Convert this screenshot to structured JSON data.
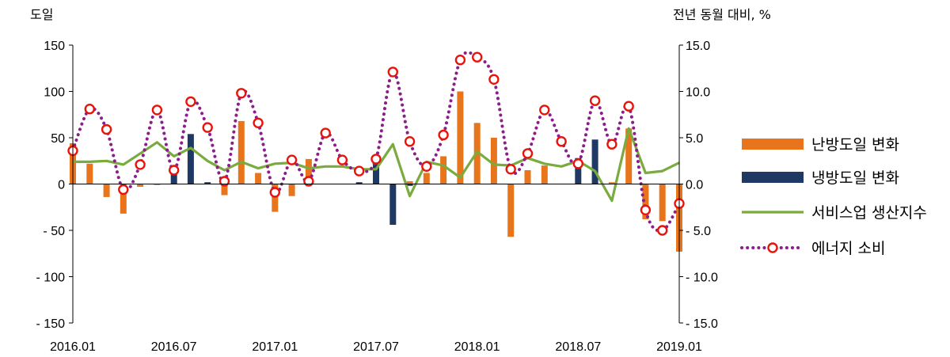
{
  "chart_data": {
    "type": "bar",
    "y_left_label": "도일",
    "y_right_label": "전년 동월 대비, %",
    "y_left_range": [
      -150,
      150
    ],
    "y_left_ticks": [
      "150",
      "100",
      "50",
      "0",
      "- 50",
      "- 100",
      "- 150"
    ],
    "y_right_range": [
      -15,
      15
    ],
    "y_right_ticks": [
      "15.0",
      "10.0",
      "5.0",
      "0.0",
      "- 5.0",
      "- 10.0",
      "- 15.0"
    ],
    "x_tick_labels": [
      "2016.01",
      "2016.07",
      "2017.01",
      "2017.07",
      "2018.01",
      "2018.07",
      "2019.01"
    ],
    "categories": [
      "2016.01",
      "2016.02",
      "2016.03",
      "2016.04",
      "2016.05",
      "2016.06",
      "2016.07",
      "2016.08",
      "2016.09",
      "2016.10",
      "2016.11",
      "2016.12",
      "2017.01",
      "2017.02",
      "2017.03",
      "2017.04",
      "2017.05",
      "2017.06",
      "2017.07",
      "2017.08",
      "2017.09",
      "2017.10",
      "2017.11",
      "2017.12",
      "2018.01",
      "2018.02",
      "2018.03",
      "2018.04",
      "2018.05",
      "2018.06",
      "2018.07",
      "2018.08",
      "2018.09",
      "2018.10",
      "2018.11",
      "2018.12",
      "2019.01"
    ],
    "legend_position": "right",
    "series": [
      {
        "name": "난방도일 변화",
        "kind": "bar",
        "axis": "left",
        "color": "#E8741C",
        "values": [
          44,
          22,
          -14,
          -32,
          -3,
          -1,
          0,
          0,
          0,
          -12,
          68,
          12,
          -30,
          -13,
          27,
          0,
          0,
          0,
          0,
          0,
          3,
          12,
          30,
          100,
          66,
          50,
          -57,
          15,
          20,
          0,
          0,
          0,
          2,
          60,
          -38,
          -40,
          -73
        ]
      },
      {
        "name": "냉방도일 변화",
        "kind": "bar",
        "axis": "left",
        "color": "#1F3864",
        "values": [
          0,
          0,
          0,
          0,
          0,
          0,
          15,
          54,
          2,
          0,
          0,
          0,
          0,
          0,
          0,
          0,
          0,
          2,
          22,
          -44,
          -2,
          0,
          0,
          0,
          0,
          0,
          0,
          0,
          0,
          0,
          28,
          48,
          0,
          0,
          0,
          0,
          0
        ]
      },
      {
        "name": "서비스업 생산지수",
        "kind": "line",
        "axis": "right",
        "color": "#7AAB3E",
        "values": [
          2.4,
          2.4,
          2.5,
          2.1,
          3.3,
          4.5,
          3.0,
          3.9,
          2.5,
          1.5,
          2.4,
          1.7,
          2.2,
          2.3,
          1.7,
          1.9,
          1.9,
          1.6,
          1.6,
          4.3,
          -1.3,
          2.4,
          2.0,
          0.7,
          3.5,
          2.1,
          2.0,
          2.8,
          2.2,
          1.9,
          2.5,
          1.4,
          -1.8,
          6.0,
          1.2,
          1.4,
          2.3
        ]
      },
      {
        "name": "에너지 소비",
        "kind": "dotted-line",
        "axis": "right",
        "color": "#8B1E8B",
        "marker_color": "#E8140C",
        "values": [
          3.6,
          8.1,
          5.9,
          -0.6,
          2.1,
          8.0,
          1.5,
          8.9,
          6.1,
          0.3,
          9.8,
          6.6,
          -0.9,
          2.6,
          0.3,
          5.5,
          2.6,
          1.4,
          2.7,
          12.1,
          4.6,
          1.9,
          5.3,
          13.4,
          13.7,
          11.3,
          1.6,
          3.3,
          8.0,
          4.6,
          2.2,
          9.0,
          4.3,
          8.4,
          -2.8,
          -5.0,
          -2.1
        ]
      }
    ]
  }
}
